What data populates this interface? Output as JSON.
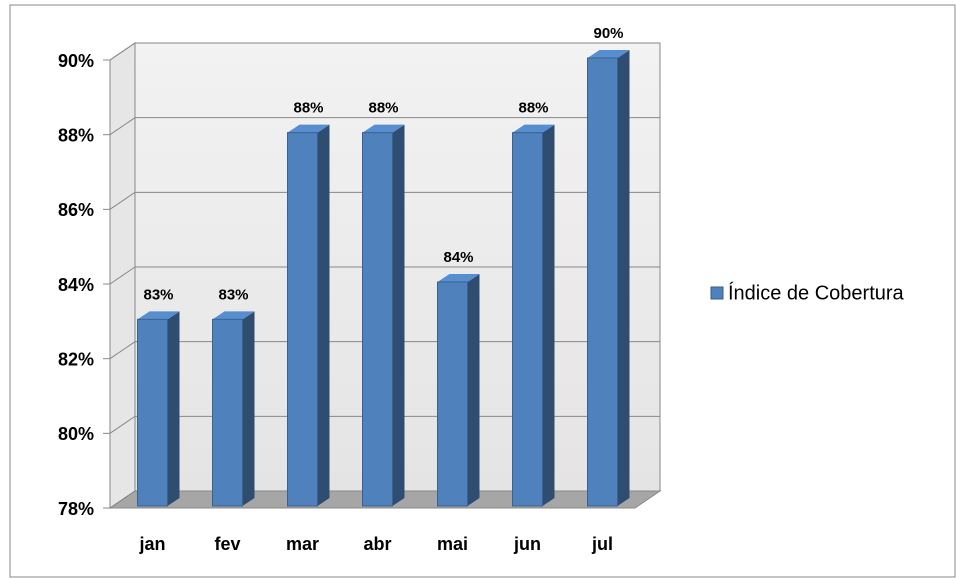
{
  "chart_data": {
    "type": "bar3d",
    "categories": [
      "jan",
      "fev",
      "mar",
      "abr",
      "mai",
      "jun",
      "jul"
    ],
    "series": [
      {
        "name": "Índice de Cobertura",
        "color": "#4f81bd",
        "values": [
          83,
          83,
          88,
          88,
          84,
          88,
          90
        ],
        "value_labels": [
          "83%",
          "83%",
          "88%",
          "88%",
          "84%",
          "88%",
          "90%"
        ]
      }
    ],
    "ylim": [
      78,
      90
    ],
    "yticks": [
      {
        "value": 78,
        "label": "78%"
      },
      {
        "value": 80,
        "label": "80%"
      },
      {
        "value": 82,
        "label": "82%"
      },
      {
        "value": 84,
        "label": "84%"
      },
      {
        "value": 86,
        "label": "86%"
      },
      {
        "value": 88,
        "label": "88%"
      },
      {
        "value": 90,
        "label": "90%"
      }
    ],
    "grid": true,
    "legend": "right"
  }
}
